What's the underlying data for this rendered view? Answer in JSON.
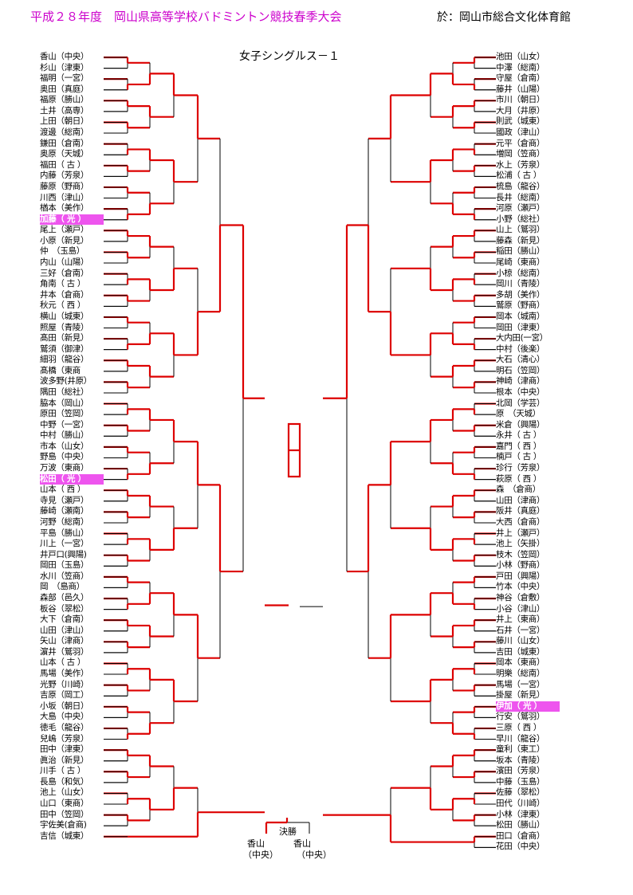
{
  "header": {
    "title": "平成２８年度　岡山県高等学校バドミントン競技春季大会",
    "venue": "於：岡山市総合文化体育館"
  },
  "event_title": "女子シングルス－１",
  "left_players": [
    "香山（中央）",
    "杉山（津東）",
    "福明（一宮）",
    "奥田（真庭）",
    "福原（勝山）",
    "土井（高専）",
    "上田（朝日）",
    "渡邊（総南）",
    "鎌田（倉南）",
    "奥原（天城）",
    "福田（ 古 ）",
    "内藤（芳泉）",
    "藤原（野商）",
    "川西（津山）",
    "楢本（美作）",
    "加藤（ 光 ）",
    "尾上（瀬戸）",
    "小原（新見）",
    "仲　（玉島）",
    "内山（山陽）",
    "三好（倉南）",
    "角南（ 古 ）",
    "井本（倉商）",
    "秋元（ 西 ）",
    "横山（城東）",
    "照屋（青陵）",
    "髙田（新見）",
    "鷲須（御津）",
    "細羽（龍谷）",
    "髙橋（東商",
    "波多野(井原）",
    "隅田（総社）",
    "脇本（岡山）",
    "原田（笠岡）",
    "中野（一宮）",
    "中村（勝山）",
    "市本（山女）",
    "野島（中央）",
    "万波（東商）",
    "松田（ 光 ）",
    "山本（ 西 ）",
    "寺見（瀬戸）",
    "藤崎（瀬南）",
    "河野（総南）",
    "平島（勝山）",
    "川上（一宮）",
    "井戸口(興陽)",
    "岡田（玉島）",
    "水川（笠商）",
    "岡　（島商）",
    "森部（邑久）",
    "板谷（翠松）",
    "大下（倉南）",
    "山田（津山）",
    "矢山（津商）",
    "濵井（鷲羽）",
    "山本（ 古 ）",
    "馬場（美作）",
    "光野（川崎）",
    "吉原（岡工）",
    "小坂（朝日）",
    "大島（中央）",
    "徳毛（龍谷）",
    "兒嶋（芳泉）",
    "田中（津東）",
    "眞治（新見）",
    "川手（ 古 ）",
    "長島（和気）",
    "池上（山女）",
    "山口（東商）",
    "田中（笠岡）",
    "宇佐美(倉商)",
    "吉信（城東）"
  ],
  "right_players": [
    "池田（山女）",
    "中澤（総南）",
    "守屋（倉南）",
    "藤井（山陽）",
    "市川（朝日）",
    "大月（井原）",
    "則武（城東）",
    "國政（津山）",
    "元平（倉商）",
    "増岡（笠商）",
    "水上（芳泉）",
    "松浦（ 古 ）",
    "梳島（龍谷）",
    "長井（総南）",
    "河原（瀬戸）",
    "小野（総社）",
    "山上（鷲羽）",
    "藤森（新見）",
    "稲田（勝山）",
    "尾崎（東商）",
    "小椋（総南）",
    "岡川（青陵）",
    "多胡（美作）",
    "鷲原（野商）",
    "岡本（城南）",
    "岡田（津東）",
    "大内田(一宮）",
    "中村（後楽）",
    "大石（清心）",
    "明石（笠岡）",
    "神崎（津商）",
    "根本（中央）",
    "北岡（学芸）",
    "原　（天城）",
    "米倉（興陽）",
    "永井（ 古 ）",
    "嘉門（ 西 ）",
    "楠戸（ 古 ）",
    "珍行（芳泉）",
    "萩原（ 西 ）",
    "森　（倉商）",
    "山田（津商）",
    "阪井（真庭）",
    "大西（倉商）",
    "井上（瀬戸）",
    "池上（矢掛）",
    "枝木（笠岡）",
    "小林（野商）",
    "戸田（興陽）",
    "竹本（中央）",
    "神谷（倉敷）",
    "小谷（津山）",
    "井上（東商）",
    "石井（一宮）",
    "藤川（山女）",
    "吉田（城東）",
    "岡本（東商）",
    "明樂（総南）",
    "馬場（一宮）",
    "掛屋（新見）",
    "伊加（ 光 ）",
    "行安（鷲羽）",
    "三原（ 西 ）",
    "早川（龍谷）",
    "童利（東工）",
    "坂本（青陵）",
    "濱田（芳泉）",
    "中藤（玉島）",
    "佐藤（翠松）",
    "田代（川崎）",
    "小林（津東）",
    "松田（勝山）",
    "田口（倉商）",
    "花田（中央）"
  ],
  "highlighted": {
    "left": [
      "加藤（ 光 ）",
      "松田（ 光 ）"
    ],
    "right": [
      "伊加（ 光 ）"
    ]
  },
  "final": {
    "label": "決勝",
    "left_name": "香山",
    "left_school": "（中央）",
    "right_name": "香山",
    "right_school": "（中央）"
  },
  "colors": {
    "header": "#cc00cc",
    "highlight": "#ee55ee",
    "winner_line": "#dd0000",
    "line": "#000000"
  }
}
